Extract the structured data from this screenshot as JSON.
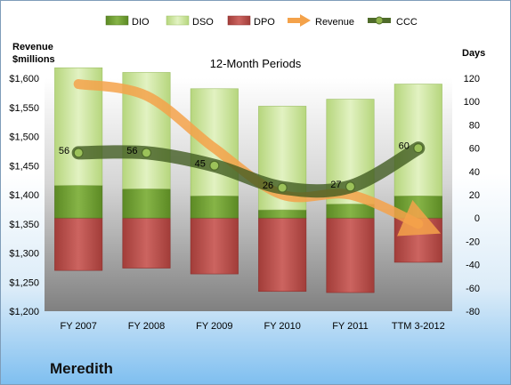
{
  "company": "Meredith",
  "chart_data": {
    "type": "bar",
    "subtitle": "12-Month Periods",
    "categories": [
      "FY 2007",
      "FY 2008",
      "FY 2009",
      "FY 2010",
      "FY 2011",
      "TTM 3-2012"
    ],
    "left_axis": {
      "label_line1": "Revenue",
      "label_line2": "$millions",
      "ylim": [
        1200,
        1600
      ],
      "ticks": [
        "$1,200",
        "$1,250",
        "$1,300",
        "$1,350",
        "$1,400",
        "$1,450",
        "$1,500",
        "$1,550",
        "$1,600"
      ]
    },
    "right_axis": {
      "label": "Days",
      "ylim": [
        -80,
        120
      ],
      "ticks": [
        "-80",
        "-60",
        "-40",
        "-20",
        "0",
        "20",
        "40",
        "60",
        "80",
        "100",
        "120"
      ]
    },
    "series": [
      {
        "name": "DIO",
        "axis": "right",
        "values": [
          28,
          25,
          19,
          7,
          12,
          19
        ],
        "color": "#6b9a2e"
      },
      {
        "name": "DSO",
        "axis": "right",
        "values": [
          101,
          100,
          92,
          89,
          90,
          96
        ],
        "color": "#c8e39a"
      },
      {
        "name": "DPO",
        "axis": "right",
        "values": [
          -45,
          -43,
          -48,
          -63,
          -64,
          -38
        ],
        "color": "#b84c48"
      },
      {
        "name": "Revenue",
        "axis": "left",
        "values": [
          1590,
          1570,
          1480,
          1400,
          1400,
          1350
        ],
        "color": "#f4a24a"
      },
      {
        "name": "CCC",
        "axis": "right",
        "values": [
          56,
          56,
          45,
          26,
          27,
          60
        ],
        "labels": [
          "56",
          "56",
          "45",
          "26",
          "27",
          "60"
        ],
        "color": "#4f6b2a"
      }
    ],
    "legend_position": "top"
  }
}
